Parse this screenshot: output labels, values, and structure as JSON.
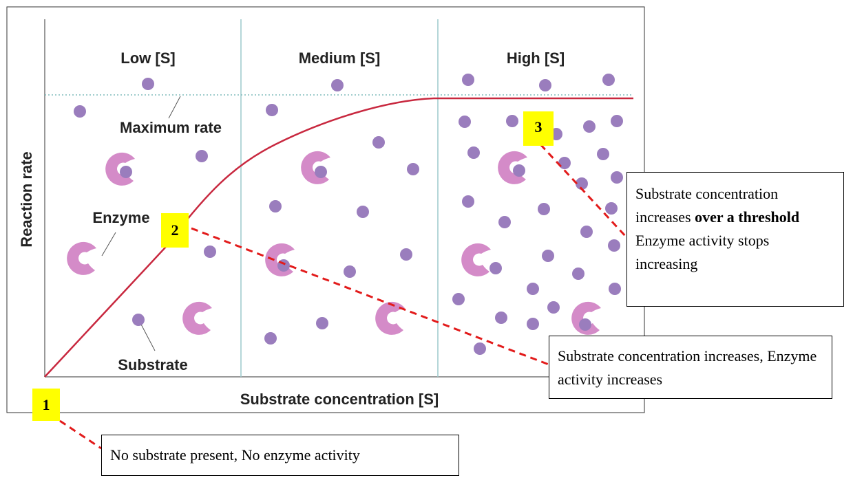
{
  "figure": {
    "regions": [
      "Low [S]",
      "Medium [S]",
      "High [S]"
    ],
    "labels": {
      "max_rate": "Maximum rate",
      "enzyme": "Enzyme",
      "substrate": "Substrate"
    },
    "y_axis_label": "Reaction rate",
    "x_axis_label": "Substrate concentration [S]"
  },
  "callouts": [
    {
      "marker": "1",
      "text": "No substrate present, No enzyme activity"
    },
    {
      "marker": "2",
      "text": "Substrate concentration increases, Enzyme activity increases"
    },
    {
      "marker": "3",
      "text_parts": [
        "Substrate concentration increases ",
        "over a threshold",
        "Enzyme activity stops increasing"
      ]
    }
  ]
}
